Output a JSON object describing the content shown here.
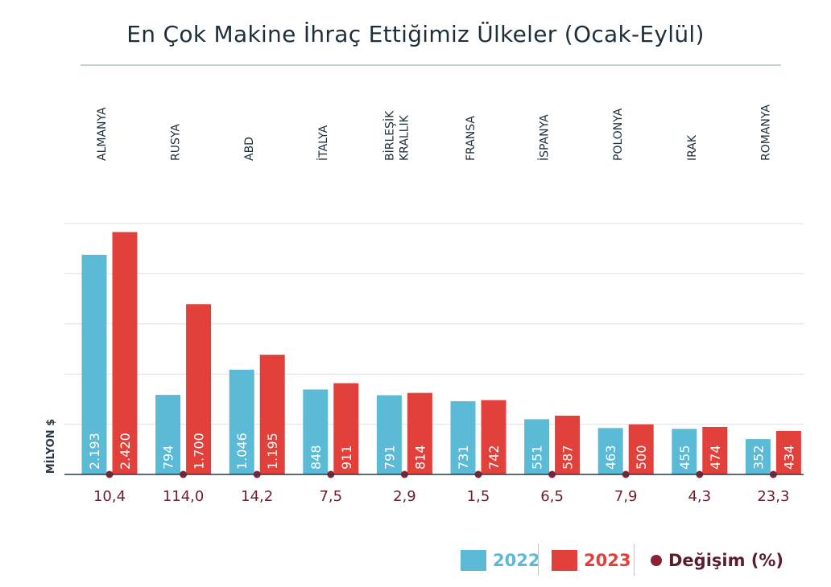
{
  "chart_data": {
    "type": "bar",
    "title": "En Çok Makine İhraç Ettiğimiz Ülkeler (Ocak-Eylül)",
    "ylabel": "MİLYON $",
    "categories": [
      "ALMANYA",
      "RUSYA",
      "ABD",
      "İTALYA",
      "BİRLEŞİK KRALLIK",
      "FRANSA",
      "İSPANYA",
      "POLONYA",
      "IRAK",
      "ROMANYA"
    ],
    "series": [
      {
        "name": "2022",
        "color": "#5bbad5",
        "values": [
          2193,
          794,
          1046,
          848,
          791,
          731,
          551,
          463,
          455,
          352
        ],
        "labels": [
          "2.193",
          "794",
          "1.046",
          "848",
          "791",
          "731",
          "551",
          "463",
          "455",
          "352"
        ]
      },
      {
        "name": "2023",
        "color": "#e2403a",
        "values": [
          2420,
          1700,
          1195,
          911,
          814,
          742,
          587,
          500,
          474,
          434
        ],
        "labels": [
          "2.420",
          "1.700",
          "1.195",
          "911",
          "814",
          "742",
          "587",
          "500",
          "474",
          "434"
        ]
      }
    ],
    "change": {
      "name": "Değişim (%)",
      "color": "#8b2232",
      "values": [
        10.4,
        114.0,
        14.2,
        7.5,
        2.9,
        1.5,
        6.5,
        7.9,
        4.3,
        23.3
      ],
      "labels": [
        "10,4",
        "114,0",
        "14,2",
        "7,5",
        "2,9",
        "1,5",
        "6,5",
        "7,9",
        "4,3",
        "23,3"
      ]
    },
    "ylim": [
      0,
      2500
    ],
    "grid": true,
    "legend_position": "bottom-right"
  },
  "legend": {
    "label_2022": "2022",
    "label_2023": "2023",
    "label_change": "Değişim (%)"
  }
}
